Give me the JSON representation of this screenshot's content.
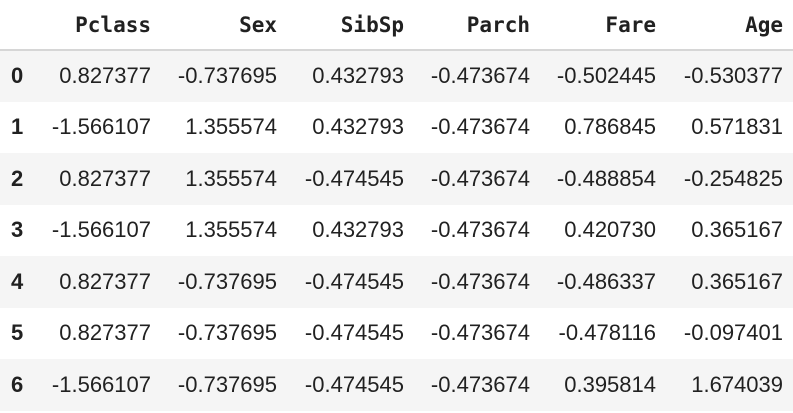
{
  "table": {
    "columns": [
      "",
      "Pclass",
      "Sex",
      "SibSp",
      "Parch",
      "Fare",
      "Age"
    ],
    "rows": [
      {
        "index": "0",
        "values": [
          "0.827377",
          "-0.737695",
          "0.432793",
          "-0.473674",
          "-0.502445",
          "-0.530377"
        ]
      },
      {
        "index": "1",
        "values": [
          "-1.566107",
          "1.355574",
          "0.432793",
          "-0.473674",
          "0.786845",
          "0.571831"
        ]
      },
      {
        "index": "2",
        "values": [
          "0.827377",
          "1.355574",
          "-0.474545",
          "-0.473674",
          "-0.488854",
          "-0.254825"
        ]
      },
      {
        "index": "3",
        "values": [
          "-1.566107",
          "1.355574",
          "0.432793",
          "-0.473674",
          "0.420730",
          "0.365167"
        ]
      },
      {
        "index": "4",
        "values": [
          "0.827377",
          "-0.737695",
          "-0.474545",
          "-0.473674",
          "-0.486337",
          "0.365167"
        ]
      },
      {
        "index": "5",
        "values": [
          "0.827377",
          "-0.737695",
          "-0.474545",
          "-0.473674",
          "-0.478116",
          "-0.097401"
        ]
      },
      {
        "index": "6",
        "values": [
          "-1.566107",
          "-0.737695",
          "-0.474545",
          "-0.473674",
          "0.395814",
          "1.674039"
        ]
      }
    ]
  }
}
